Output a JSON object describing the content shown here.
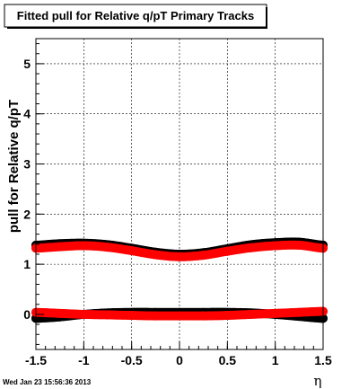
{
  "title": "Fitted pull for Relative q/pT  Primary Tracks",
  "timestamp": "Wed Jan 23 15:56:36 2013",
  "chart_data": {
    "type": "scatter",
    "title": "Fitted pull for Relative q/pT  Primary Tracks",
    "xlabel": "η",
    "ylabel": "pull for Relative q/pT",
    "xlim": [
      -1.5,
      1.5
    ],
    "ylim": [
      -0.7,
      5.5
    ],
    "x_ticks": [
      "-1.5",
      "-1",
      "-0.5",
      "0",
      "0.5",
      "1",
      "1.5"
    ],
    "y_ticks": [
      "0",
      "1",
      "2",
      "3",
      "4",
      "5"
    ],
    "grid": true,
    "series": [
      {
        "color": "#000000",
        "x": [
          -1.5,
          -1.25,
          -1.0,
          -0.75,
          -0.5,
          -0.25,
          0.0,
          0.25,
          0.5,
          0.75,
          1.0,
          1.25,
          1.5
        ],
        "y": [
          1.38,
          1.41,
          1.42,
          1.39,
          1.32,
          1.24,
          1.2,
          1.23,
          1.31,
          1.39,
          1.43,
          1.44,
          1.38
        ]
      },
      {
        "color": "#ff0000",
        "x": [
          -1.5,
          -1.25,
          -1.0,
          -0.75,
          -0.5,
          -0.25,
          0.0,
          0.25,
          0.5,
          0.75,
          1.0,
          1.25,
          1.5
        ],
        "y": [
          1.32,
          1.35,
          1.37,
          1.34,
          1.27,
          1.19,
          1.15,
          1.18,
          1.26,
          1.33,
          1.37,
          1.38,
          1.32
        ]
      },
      {
        "color": "#000000",
        "x": [
          -1.5,
          -1.25,
          -1.0,
          -0.75,
          -0.5,
          -0.25,
          0.0,
          0.25,
          0.5,
          0.75,
          1.0,
          1.25,
          1.5
        ],
        "y": [
          -0.08,
          -0.05,
          0.0,
          0.03,
          0.04,
          0.04,
          0.04,
          0.04,
          0.04,
          0.03,
          0.0,
          -0.04,
          -0.08
        ]
      },
      {
        "color": "#ff0000",
        "x": [
          -1.5,
          -1.25,
          -1.0,
          -0.75,
          -0.5,
          -0.25,
          0.0,
          0.25,
          0.5,
          0.75,
          1.0,
          1.25,
          1.5
        ],
        "y": [
          0.04,
          0.02,
          0.0,
          -0.01,
          -0.02,
          -0.03,
          -0.03,
          -0.03,
          -0.02,
          0.0,
          0.02,
          0.04,
          0.06
        ]
      }
    ]
  }
}
